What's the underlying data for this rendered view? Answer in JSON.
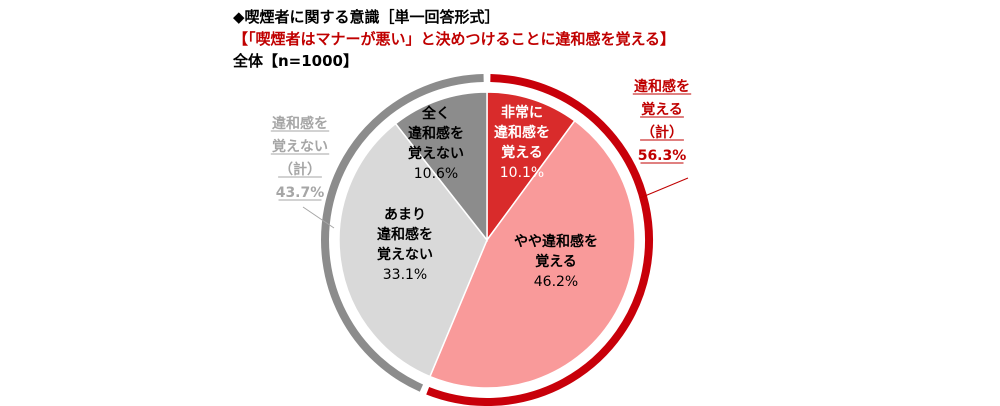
{
  "header": {
    "title": "◆喫煙者に関する意識［単一回答形式］",
    "subtitle": "【「喫煙者はマナーが悪い」と決めつけることに違和感を覚える】",
    "base": "全体【n=1000】"
  },
  "colors": {
    "very": "#d92b2b",
    "somewhat": "#f99a9a",
    "not_much": "#d9d9d9",
    "not_at_all": "#8c8c8c",
    "outer_feel": "#c8000a",
    "outer_not": "#8c8c8c",
    "summary_feel": "#c00000",
    "summary_not": "#a6a6a6"
  },
  "chart_data": {
    "type": "pie",
    "slices": [
      {
        "label_lines": [
          "非常に",
          "違和感を",
          "覚える"
        ],
        "value": 10.1,
        "value_label": "10.1%",
        "color_key": "very"
      },
      {
        "label_lines": [
          "やや違和感を",
          "覚える"
        ],
        "value": 46.2,
        "value_label": "46.2%",
        "color_key": "somewhat"
      },
      {
        "label_lines": [
          "あまり",
          "違和感を",
          "覚えない"
        ],
        "value": 33.1,
        "value_label": "33.1%",
        "color_key": "not_much"
      },
      {
        "label_lines": [
          "全く",
          "違和感を",
          "覚えない"
        ],
        "value": 10.6,
        "value_label": "10.6%",
        "color_key": "not_at_all"
      }
    ],
    "summaries": [
      {
        "label_lines": [
          "違和感を",
          "覚える",
          "（計）"
        ],
        "value": 56.3,
        "value_label": "56.3%",
        "color_key": "summary_feel"
      },
      {
        "label_lines": [
          "違和感を",
          "覚えない",
          "（計）"
        ],
        "value": 43.7,
        "value_label": "43.7%",
        "color_key": "summary_not"
      }
    ]
  }
}
